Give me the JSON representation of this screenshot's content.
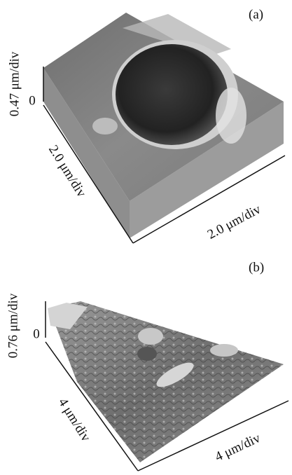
{
  "panels": [
    {
      "label": "(a)",
      "z_axis": {
        "label": "0.47 μm/div",
        "zero": "0"
      },
      "y_axis_label": "2.0 μm/div",
      "x_axis_label": "2.0 μm/div"
    },
    {
      "label": "(b)",
      "z_axis": {
        "label": "0.76 μm/div",
        "zero": "0"
      },
      "y_axis_label": "4 μm/div",
      "x_axis_label": "4 μm/div"
    }
  ]
}
